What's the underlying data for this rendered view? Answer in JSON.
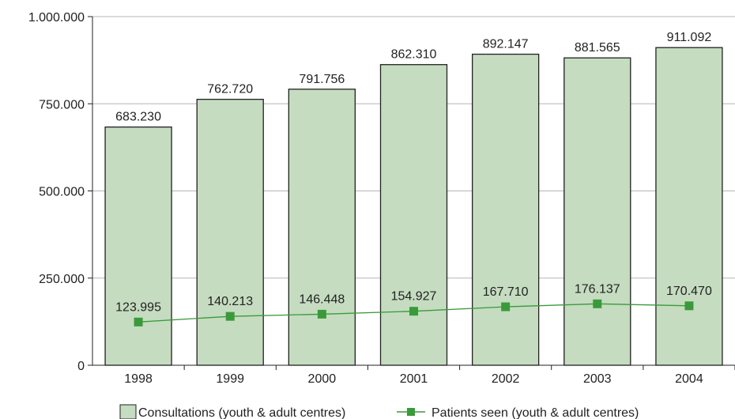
{
  "chart_data": {
    "type": "bar",
    "categories": [
      "1998",
      "1999",
      "2000",
      "2001",
      "2002",
      "2003",
      "2004"
    ],
    "series": [
      {
        "name": "Consultations (youth & adult centres)",
        "type": "bar",
        "values": [
          683230,
          762720,
          791756,
          862310,
          892147,
          881565,
          911092
        ],
        "labels": [
          "683.230",
          "762.720",
          "791.756",
          "862.310",
          "892.147",
          "881.565",
          "911.092"
        ],
        "color": "#c5dcc0",
        "stroke": "#222222"
      },
      {
        "name": "Patients seen (youth & adult centres)",
        "type": "line",
        "values": [
          123995,
          140213,
          146448,
          154927,
          167710,
          176137,
          170470
        ],
        "labels": [
          "123.995",
          "140.213",
          "146.448",
          "154.927",
          "167.710",
          "176.137",
          "170.470"
        ],
        "color": "#3a9a3a"
      }
    ],
    "ylim": [
      0,
      1000000
    ],
    "yticks": [
      0,
      250000,
      500000,
      750000,
      1000000
    ],
    "ytick_labels": [
      "0",
      "250.000",
      "500.000",
      "750.000",
      "1.000.000"
    ],
    "grid": true,
    "legend_position": "bottom",
    "title": "",
    "xlabel": "",
    "ylabel": ""
  }
}
